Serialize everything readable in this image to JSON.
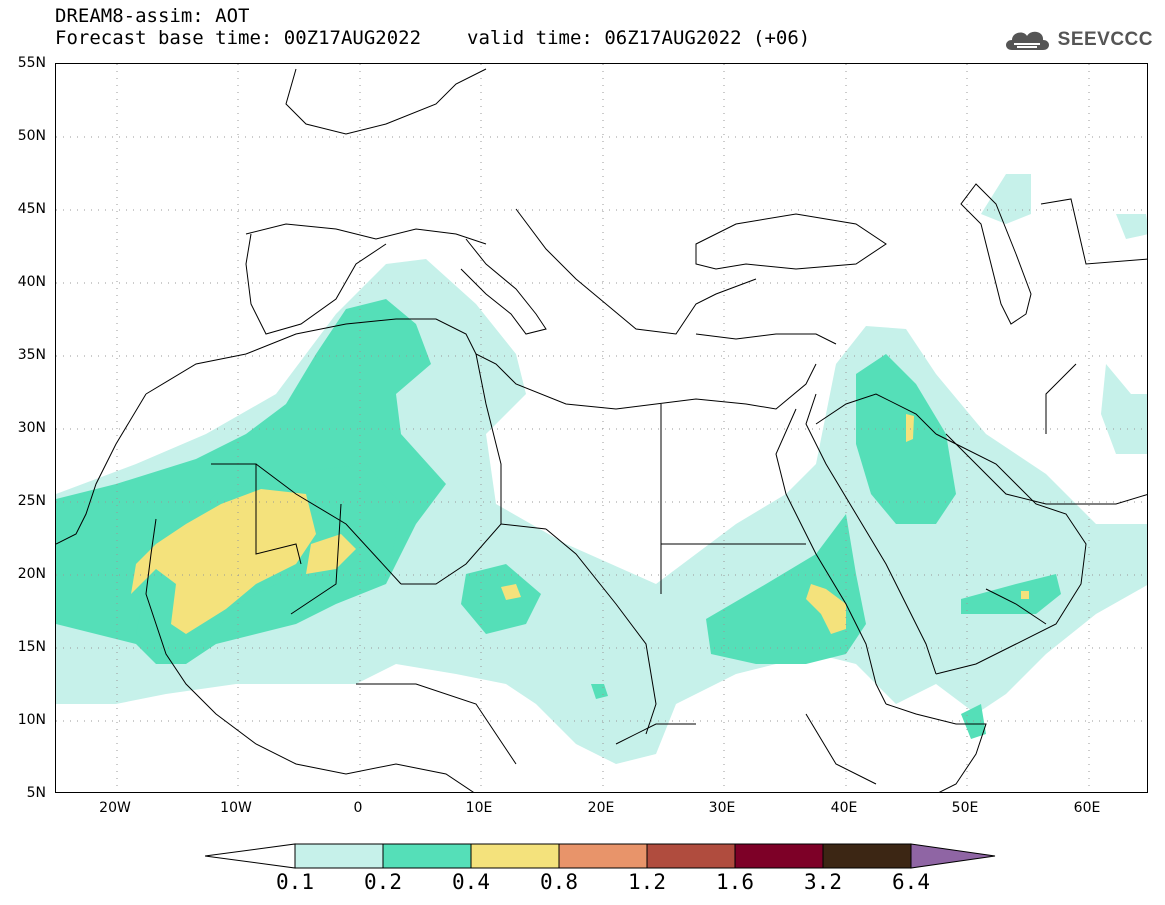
{
  "header": {
    "title_line1": "DREAM8-assim: AOT",
    "base_time": "Forecast base time: 00Z17AUG2022",
    "valid_time": "valid time: 06Z17AUG2022 (+06)",
    "logo_text": "SEEVCCC"
  },
  "map": {
    "region": "North Africa / Middle East",
    "lon_range": [
      -25,
      65
    ],
    "lat_range": [
      5,
      55
    ],
    "lat_labels": [
      "55N",
      "50N",
      "45N",
      "40N",
      "35N",
      "30N",
      "25N",
      "20N",
      "15N",
      "10N",
      "5N"
    ],
    "lon_labels": [
      "20W",
      "10W",
      "0",
      "10E",
      "20E",
      "30E",
      "40E",
      "50E",
      "60E"
    ],
    "grid": "dotted"
  },
  "colorbar": {
    "levels": [
      "0.1",
      "0.2",
      "0.4",
      "0.8",
      "1.2",
      "1.6",
      "3.2",
      "6.4"
    ],
    "colors": [
      "#c6f1ea",
      "#55dfb8",
      "#f4e27c",
      "#e8946a",
      "#b04c3e",
      "#7d0027",
      "#3c2614",
      "#8f65a4"
    ],
    "open_end_colors": [
      "#ffffff",
      "#8f65a4"
    ]
  },
  "colors": {
    "level_0_1": "#c6f1ea",
    "level_0_2": "#55dfb8",
    "level_0_4": "#f4e27c"
  }
}
